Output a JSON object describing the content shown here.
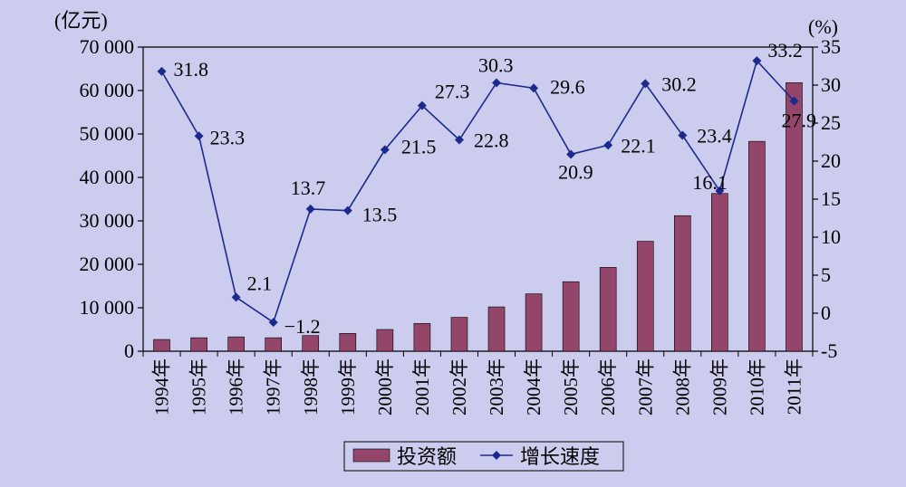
{
  "chart_data": {
    "type": "bar-line",
    "categories": [
      "1994年",
      "1995年",
      "1996年",
      "1997年",
      "1998年",
      "1999年",
      "2000年",
      "2001年",
      "2002年",
      "2003年",
      "2004年",
      "2005年",
      "2006年",
      "2007年",
      "2008年",
      "2009年",
      "2010年",
      "2011年"
    ],
    "series": [
      {
        "name": "投资额",
        "type": "bar",
        "axis": "left",
        "color": "#93466a",
        "values": [
          2700,
          3100,
          3300,
          3100,
          3600,
          4100,
          5000,
          6400,
          7800,
          10200,
          13200,
          16000,
          19300,
          25300,
          31200,
          36300,
          48300,
          61800
        ]
      },
      {
        "name": "增长速度",
        "type": "line",
        "axis": "right",
        "color": "#1c2a8c",
        "values": [
          31.8,
          23.3,
          2.1,
          -1.2,
          13.7,
          13.5,
          21.5,
          27.3,
          22.8,
          30.3,
          29.6,
          20.9,
          22.1,
          30.2,
          23.4,
          16.1,
          33.2,
          27.9
        ],
        "labels": [
          "31.8",
          "23.3",
          "2.1",
          "−1.2",
          "13.7",
          "13.5",
          "21.5",
          "27.3",
          "22.8",
          "30.3",
          "29.6",
          "20.9",
          "22.1",
          "30.2",
          "23.4",
          "16.1",
          "33.2",
          "27.9"
        ]
      }
    ],
    "y_left": {
      "unit": "(亿元)",
      "ylim": [
        0,
        70000
      ],
      "ticks": [
        0,
        10000,
        20000,
        30000,
        40000,
        50000,
        60000,
        70000
      ],
      "tick_labels": [
        "0",
        "10 000",
        "20 000",
        "30 000",
        "40 000",
        "50 000",
        "60 000",
        "70 000"
      ]
    },
    "y_right": {
      "unit": "(%)",
      "ylim": [
        -5,
        35
      ],
      "ticks": [
        -5,
        0,
        5,
        10,
        15,
        20,
        25,
        30,
        35
      ],
      "tick_labels": [
        "-5",
        "0",
        "5",
        "10",
        "15",
        "20",
        "25",
        "30",
        "35"
      ]
    },
    "legend": {
      "position": "bottom",
      "items": [
        "投资额",
        "增长速度"
      ]
    },
    "grid": false,
    "colors": {
      "background": "#ccccee",
      "bar": "#93466a",
      "line": "#1c2a8c"
    }
  }
}
